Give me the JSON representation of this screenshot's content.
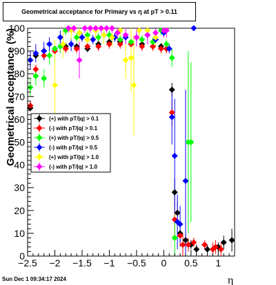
{
  "header": {
    "title": "Geometrical acceptance for Primary vs    η  at pT > 0.11",
    "timestamp": "Sun Dec  1 09:34:17 2024"
  },
  "chart_data": {
    "type": "scatter",
    "title": "Geometrical acceptance for Primary vs    η  at pT > 0.11",
    "xlabel": "η",
    "ylabel": "Geometrical acceptance (%)",
    "xlim": [
      -2.5,
      1.3
    ],
    "ylim": [
      0,
      100
    ],
    "xticks": [
      -2.5,
      -2,
      -1.5,
      -1,
      -0.5,
      0,
      0.5,
      1
    ],
    "xtick_labels": [
      "−2.5",
      "−2",
      "−1.5",
      "−1",
      "−0.5",
      "0",
      "0.5",
      "1"
    ],
    "yticks": [
      0,
      10,
      20,
      30,
      40,
      50,
      60,
      70,
      80,
      90,
      100
    ],
    "ytick_labels": [
      "0",
      "10",
      "20",
      "30",
      "40",
      "50",
      "60",
      "70",
      "80",
      "90",
      "100"
    ],
    "grid": false,
    "legend_position": "left-middle",
    "series": [
      {
        "name": "(+) with pT/|q| > 0.1",
        "color": "#000000",
        "points": [
          [
            -2.45,
            65,
            1.5
          ],
          [
            -2.35,
            88,
            1.5
          ],
          [
            -2.2,
            90,
            1.5
          ],
          [
            -2.0,
            91,
            1.5
          ],
          [
            -1.8,
            92,
            1.5
          ],
          [
            -1.6,
            92,
            1.5
          ],
          [
            -1.4,
            91,
            1.5
          ],
          [
            -1.2,
            93,
            1.5
          ],
          [
            -1.0,
            94,
            1.5
          ],
          [
            -0.8,
            94,
            1.5
          ],
          [
            -0.6,
            93,
            1.5
          ],
          [
            -0.4,
            93,
            1.5
          ],
          [
            -0.2,
            92,
            1.5
          ],
          [
            -0.05,
            92,
            1.5
          ],
          [
            0.05,
            91,
            1.5
          ],
          [
            0.15,
            73,
            3
          ],
          [
            0.2,
            28,
            6
          ],
          [
            0.25,
            19,
            5
          ],
          [
            0.3,
            10,
            4
          ],
          [
            0.4,
            7,
            3
          ],
          [
            0.5,
            5,
            2
          ],
          [
            0.6,
            3,
            2
          ],
          [
            0.8,
            3,
            2
          ],
          [
            1.0,
            4,
            2
          ],
          [
            1.1,
            6,
            3
          ],
          [
            1.25,
            7,
            5
          ]
        ]
      },
      {
        "name": "(-) with pT/|q| > 0.1",
        "color": "#ff0000",
        "points": [
          [
            -2.45,
            66,
            2
          ],
          [
            -2.35,
            82,
            2
          ],
          [
            -2.2,
            88,
            2
          ],
          [
            -2.0,
            90,
            2
          ],
          [
            -1.8,
            91,
            2
          ],
          [
            -1.6,
            91,
            2
          ],
          [
            -1.4,
            92,
            2
          ],
          [
            -1.2,
            92,
            2
          ],
          [
            -1.0,
            93,
            2
          ],
          [
            -0.8,
            93,
            2
          ],
          [
            -0.6,
            93,
            2
          ],
          [
            -0.4,
            92,
            2
          ],
          [
            -0.2,
            92,
            2
          ],
          [
            -0.05,
            91,
            2
          ],
          [
            0.05,
            91,
            2
          ],
          [
            0.15,
            63,
            6
          ],
          [
            0.2,
            16,
            8
          ],
          [
            0.3,
            9,
            5
          ],
          [
            0.35,
            5,
            5
          ],
          [
            0.45,
            5,
            3
          ],
          [
            0.55,
            6,
            2
          ],
          [
            0.75,
            5,
            2
          ],
          [
            0.9,
            3,
            3
          ],
          [
            0.95,
            4,
            3
          ],
          [
            1.05,
            3,
            3
          ]
        ]
      },
      {
        "name": "(+) with pT/|q| > 0.5",
        "color": "#00ff00",
        "points": [
          [
            -2.45,
            74,
            4
          ],
          [
            -2.35,
            79,
            4
          ],
          [
            -2.2,
            78,
            4
          ],
          [
            -2.1,
            88,
            4
          ],
          [
            -2.0,
            91,
            3
          ],
          [
            -1.9,
            92,
            3
          ],
          [
            -1.8,
            99,
            2
          ],
          [
            -1.6,
            96,
            2
          ],
          [
            -1.4,
            97,
            2
          ],
          [
            -1.2,
            96,
            2
          ],
          [
            -1.0,
            97,
            2
          ],
          [
            -0.8,
            95,
            2
          ],
          [
            -0.6,
            94,
            2
          ],
          [
            -0.4,
            95,
            2
          ],
          [
            -0.2,
            94,
            2
          ],
          [
            -0.05,
            99,
            2
          ],
          [
            0.05,
            93,
            2
          ],
          [
            0.15,
            87,
            4
          ],
          [
            0.2,
            8,
            10
          ],
          [
            0.45,
            50,
            40
          ],
          [
            0.5,
            50,
            35
          ]
        ]
      },
      {
        "name": "(-) with pT/|q| > 0.5",
        "color": "#0000ff",
        "points": [
          [
            -2.45,
            86,
            4
          ],
          [
            -2.35,
            89,
            4
          ],
          [
            -2.2,
            90,
            4
          ],
          [
            -2.1,
            93,
            3
          ],
          [
            -1.9,
            96,
            3
          ],
          [
            -1.7,
            93,
            3
          ],
          [
            -1.5,
            96,
            2
          ],
          [
            -1.3,
            95,
            2
          ],
          [
            -1.1,
            97,
            2
          ],
          [
            -0.9,
            96,
            2
          ],
          [
            -0.7,
            96,
            2
          ],
          [
            -0.5,
            96,
            2
          ],
          [
            -0.3,
            97,
            2
          ],
          [
            -0.15,
            95,
            2
          ],
          [
            0.0,
            98,
            2
          ],
          [
            0.1,
            91,
            2
          ],
          [
            0.15,
            61,
            12
          ],
          [
            0.2,
            44,
            25
          ],
          [
            0.25,
            15,
            12
          ],
          [
            0.3,
            14,
            8
          ],
          [
            0.4,
            33,
            40
          ],
          [
            0.55,
            100,
            0
          ]
        ]
      },
      {
        "name": "(+) with pT/|q| > 1.0",
        "color": "#ffff00",
        "points": [
          [
            -2.0,
            75,
            20
          ],
          [
            -1.85,
            93,
            6
          ],
          [
            -1.7,
            99,
            4
          ],
          [
            -1.55,
            98,
            4
          ],
          [
            -1.4,
            95,
            4
          ],
          [
            -1.25,
            99,
            4
          ],
          [
            -1.1,
            97,
            4
          ],
          [
            -0.95,
            96,
            4
          ],
          [
            -0.8,
            99,
            3
          ],
          [
            -0.7,
            86,
            8
          ],
          [
            -0.6,
            87,
            15
          ],
          [
            -0.55,
            75,
            22
          ],
          [
            -0.45,
            99,
            4
          ],
          [
            -0.3,
            99,
            4
          ],
          [
            -0.15,
            96,
            4
          ],
          [
            0.0,
            99,
            3
          ]
        ]
      },
      {
        "name": "(-) with pT/|q| > 1.0",
        "color": "#ff00ff",
        "points": [
          [
            -1.75,
            100,
            2
          ],
          [
            -1.65,
            100,
            2
          ],
          [
            -1.55,
            86,
            8
          ],
          [
            -1.45,
            100,
            2
          ],
          [
            -1.35,
            100,
            2
          ],
          [
            -1.25,
            100,
            2
          ],
          [
            -1.15,
            100,
            2
          ],
          [
            -1.05,
            100,
            2
          ],
          [
            -0.95,
            100,
            2
          ],
          [
            -0.85,
            98,
            4
          ],
          [
            -0.7,
            97,
            4
          ],
          [
            -0.5,
            96,
            4
          ],
          [
            -0.3,
            97,
            4
          ],
          [
            -0.15,
            98,
            4
          ],
          [
            0.0,
            99,
            3
          ],
          [
            0.05,
            99,
            3
          ]
        ]
      }
    ]
  }
}
